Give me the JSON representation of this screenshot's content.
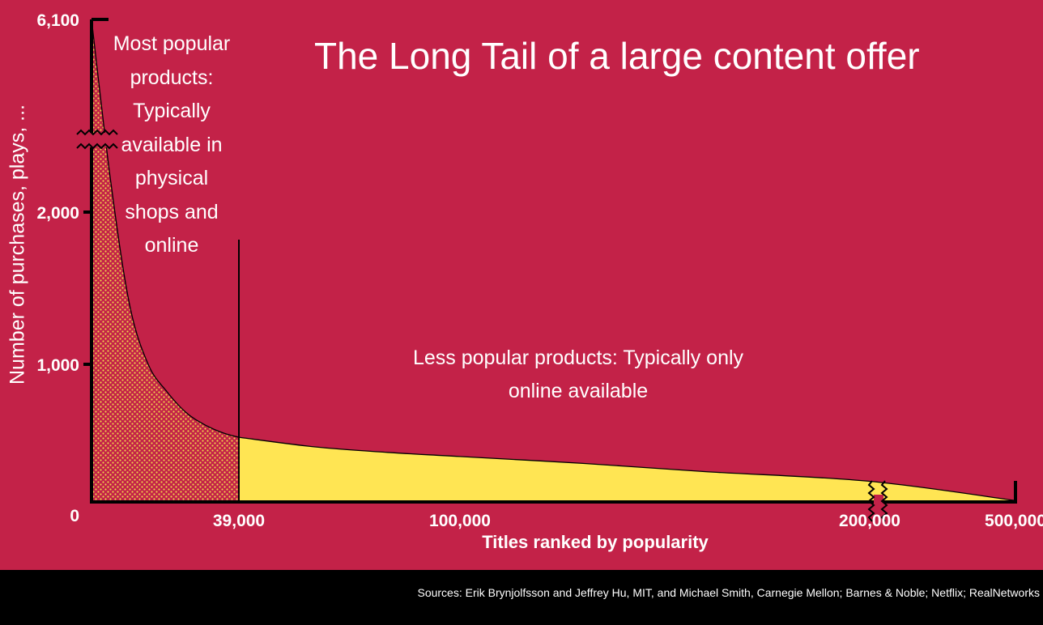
{
  "title": "The Long Tail of a large content offer",
  "annotations": {
    "head_text": "Most popular products: Typically available in physical shops and online",
    "tail_text": "Less popular products: Typically only online available"
  },
  "source": "Sources: Erik Brynjolfsson and Jeffrey Hu, MIT, and Michael Smith, Carnegie Mellon; Barnes & Noble; Netflix; RealNetworks",
  "colors": {
    "background": "#c32248",
    "head_fill": "#c32248",
    "head_dots": "#f2d24a",
    "tail_fill": "#ffe553",
    "axis": "#000000",
    "text": "#ffffff"
  },
  "chart_data": {
    "type": "area",
    "title": "The Long Tail of a large content offer",
    "xlabel": "Titles ranked by popularity",
    "ylabel": "Number of purchases, plays, ...",
    "x_ticks": [
      "39,000",
      "100,000",
      "200,000",
      "500,000"
    ],
    "y_ticks": [
      "0",
      "1,000",
      "2,000",
      "6,100"
    ],
    "x_axis_break_after": "200,000",
    "y_axis_break_between": [
      "2,000",
      "6,100"
    ],
    "split_at": "39,000",
    "series": [
      {
        "name": "Most popular products",
        "x": [
          1,
          5000,
          10000,
          15000,
          20000,
          25000,
          30000,
          35000,
          39000
        ],
        "y": [
          6100,
          2200,
          1400,
          1000,
          800,
          650,
          560,
          500,
          470
        ]
      },
      {
        "name": "Less popular products",
        "x": [
          39000,
          60000,
          80000,
          100000,
          130000,
          160000,
          200000,
          500000
        ],
        "y": [
          470,
          400,
          360,
          330,
          280,
          220,
          150,
          10
        ]
      }
    ],
    "grid": false,
    "legend": "none"
  }
}
